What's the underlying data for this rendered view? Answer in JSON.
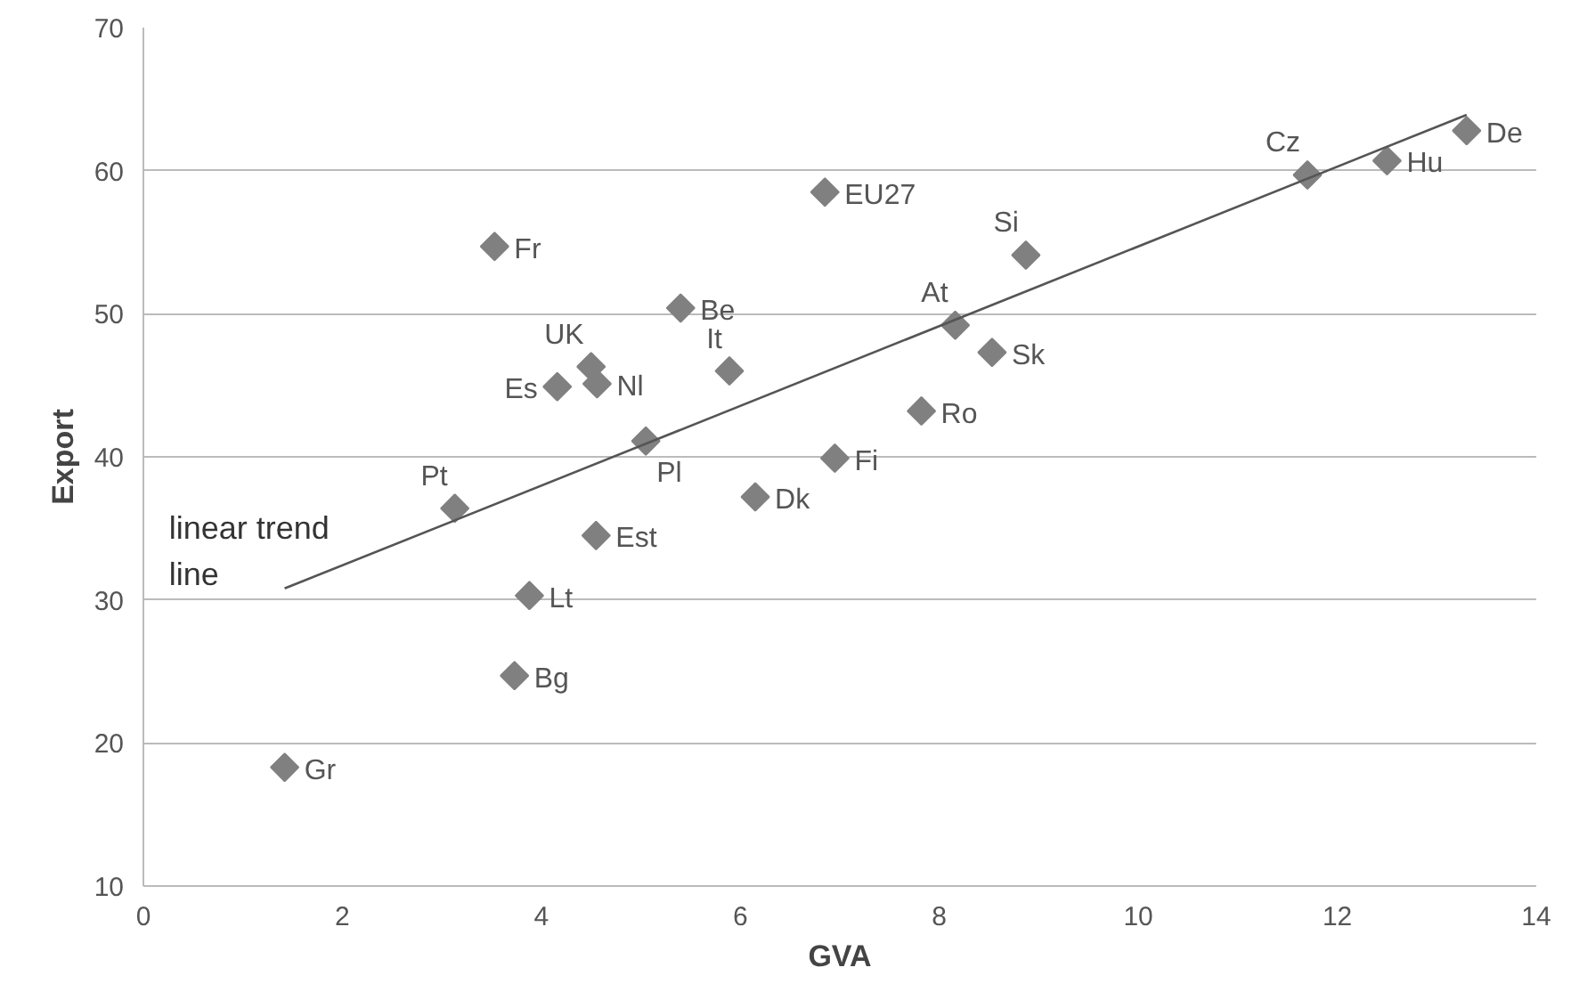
{
  "chart_data": {
    "type": "scatter",
    "xlabel": "GVA",
    "ylabel": "Export",
    "xlim": [
      0,
      14
    ],
    "ylim": [
      10,
      70
    ],
    "xticks": [
      0,
      2,
      4,
      6,
      8,
      10,
      12,
      14
    ],
    "yticks": [
      10,
      20,
      30,
      40,
      50,
      60,
      70
    ],
    "grid": "y",
    "legend": false,
    "marker": "diamond",
    "series": [
      {
        "color": "#808080",
        "x": [
          3.53,
          5.4,
          4.5,
          4.56,
          4.16,
          5.89,
          5.05,
          3.13,
          4.55,
          3.88,
          3.73,
          1.42,
          6.15,
          6.95,
          7.82,
          8.53,
          8.16,
          8.87,
          6.85,
          11.7,
          12.5,
          13.3
        ],
        "values": [
          54.7,
          50.4,
          46.3,
          45.1,
          44.9,
          46.0,
          41.1,
          36.4,
          34.5,
          30.3,
          24.7,
          18.3,
          37.2,
          39.9,
          43.2,
          47.3,
          49.2,
          54.1,
          58.5,
          59.7,
          60.7,
          62.8
        ]
      },
      {
        "type": "line",
        "marker": "none",
        "name": "linear trend line",
        "color": "#555555",
        "x": [
          1.42,
          13.3
        ],
        "values": [
          30.8,
          63.9
        ]
      }
    ],
    "annotations": [
      {
        "text": "Fr",
        "x": 3.53,
        "y": 54.7
      },
      {
        "text": "Be",
        "x": 5.4,
        "y": 50.4
      },
      {
        "text": "UK",
        "x": 4.5,
        "y": 46.3
      },
      {
        "text": "Nl",
        "x": 4.56,
        "y": 45.1
      },
      {
        "text": "Es",
        "x": 4.16,
        "y": 44.9
      },
      {
        "text": "It",
        "x": 5.89,
        "y": 46.0
      },
      {
        "text": "Pl",
        "x": 5.05,
        "y": 41.1
      },
      {
        "text": "Pt",
        "x": 3.13,
        "y": 36.4
      },
      {
        "text": "Est",
        "x": 4.55,
        "y": 34.5
      },
      {
        "text": "Lt",
        "x": 3.88,
        "y": 30.3
      },
      {
        "text": "Bg",
        "x": 3.73,
        "y": 24.7
      },
      {
        "text": "Gr",
        "x": 1.42,
        "y": 18.3
      },
      {
        "text": "Dk",
        "x": 6.15,
        "y": 37.2
      },
      {
        "text": "Fi",
        "x": 6.95,
        "y": 39.9
      },
      {
        "text": "Ro",
        "x": 7.82,
        "y": 43.2
      },
      {
        "text": "Sk",
        "x": 8.53,
        "y": 47.3
      },
      {
        "text": "At",
        "x": 8.16,
        "y": 49.2
      },
      {
        "text": "Si",
        "x": 8.87,
        "y": 54.1
      },
      {
        "text": "EU27",
        "x": 6.85,
        "y": 58.5
      },
      {
        "text": "Cz",
        "x": 11.7,
        "y": 59.7
      },
      {
        "text": "Hu",
        "x": 12.5,
        "y": 60.7
      },
      {
        "text": "De",
        "x": 13.3,
        "y": 62.8
      }
    ]
  }
}
